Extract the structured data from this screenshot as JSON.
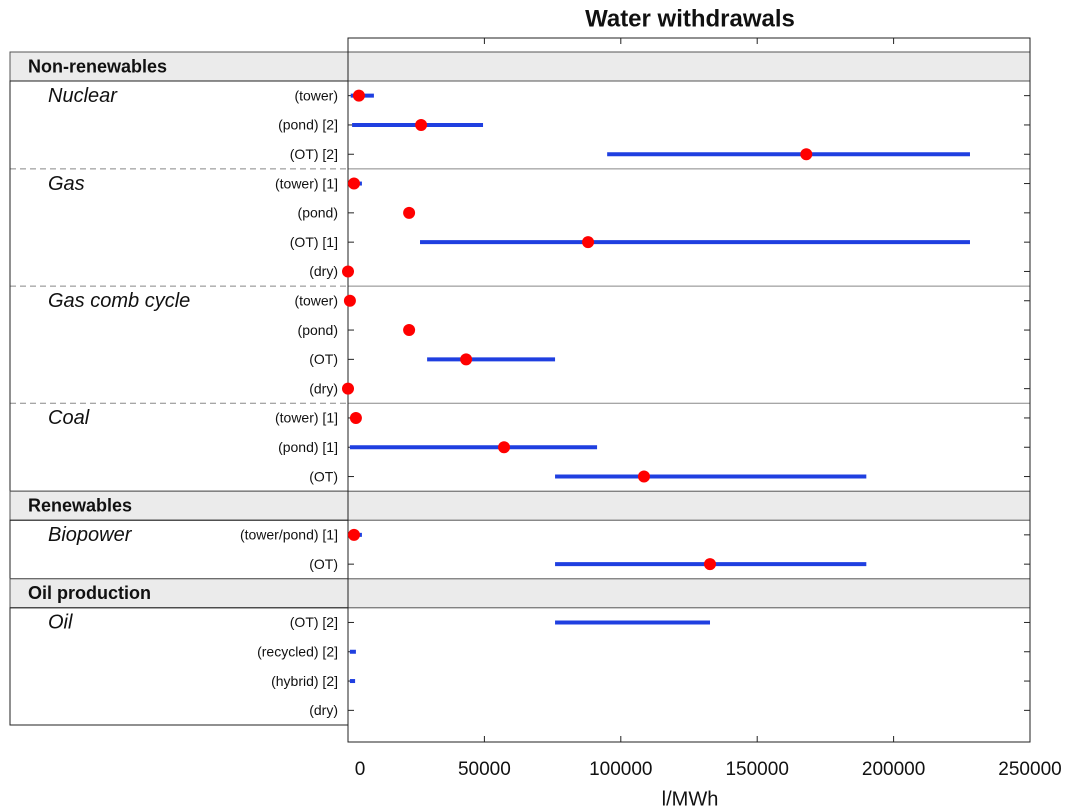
{
  "chart_data": {
    "type": "dotrange",
    "title": "Water withdrawals",
    "x_label": "l/MWh",
    "xlim": [
      0,
      250000
    ],
    "xticks": [
      0,
      50000,
      100000,
      150000,
      200000,
      250000
    ],
    "dot_color": "#ff0000",
    "range_color": "#1f3fe0",
    "sections": [
      {
        "title": "Non-renewables",
        "groups": [
          {
            "name": "Nuclear",
            "rows": [
              {
                "label": "(tower)",
                "value": 4000,
                "low": 1000,
                "high": 9500
              },
              {
                "label": "(pond) [2]",
                "value": 26800,
                "low": 1500,
                "high": 49500
              },
              {
                "label": "(OT) [2]",
                "value": 168000,
                "low": 95000,
                "high": 228000
              }
            ]
          },
          {
            "name": "Gas",
            "rows": [
              {
                "label": "(tower) [1]",
                "value": 2200,
                "low": 700,
                "high": 5100
              },
              {
                "label": "(pond)",
                "value": 22400,
                "low": null,
                "high": null
              },
              {
                "label": "(OT) [1]",
                "value": 88000,
                "low": 26400,
                "high": 228000
              },
              {
                "label": "(dry)",
                "value": 0,
                "low": null,
                "high": null
              }
            ]
          },
          {
            "name": "Gas comb cycle",
            "rows": [
              {
                "label": "(tower)",
                "value": 700,
                "low": null,
                "high": null
              },
              {
                "label": "(pond)",
                "value": 22400,
                "low": null,
                "high": null
              },
              {
                "label": "(OT)",
                "value": 43300,
                "low": 29000,
                "high": 75900
              },
              {
                "label": "(dry)",
                "value": 0,
                "low": null,
                "high": null
              }
            ]
          },
          {
            "name": "Coal",
            "rows": [
              {
                "label": "(tower) [1]",
                "value": 2900,
                "low": null,
                "high": null
              },
              {
                "label": "(pond) [1]",
                "value": 57200,
                "low": 700,
                "high": 91300
              },
              {
                "label": "(OT)",
                "value": 108500,
                "low": 75900,
                "high": 190000
              }
            ]
          }
        ]
      },
      {
        "title": "Renewables",
        "groups": [
          {
            "name": "Biopower",
            "rows": [
              {
                "label": "(tower/pond) [1]",
                "value": 2200,
                "low": 700,
                "high": 5100
              },
              {
                "label": "(OT)",
                "value": 132700,
                "low": 75900,
                "high": 190000
              }
            ]
          }
        ]
      },
      {
        "title": "Oil production",
        "groups": [
          {
            "name": "Oil",
            "rows": [
              {
                "label": "(OT) [2]",
                "value": null,
                "low": 75900,
                "high": 132700
              },
              {
                "label": "(recycled) [2]",
                "value": null,
                "low": 700,
                "high": 2900
              },
              {
                "label": "(hybrid) [2]",
                "value": null,
                "low": 700,
                "high": 2600
              },
              {
                "label": "(dry)",
                "value": null,
                "low": null,
                "high": null
              }
            ]
          }
        ]
      }
    ]
  }
}
